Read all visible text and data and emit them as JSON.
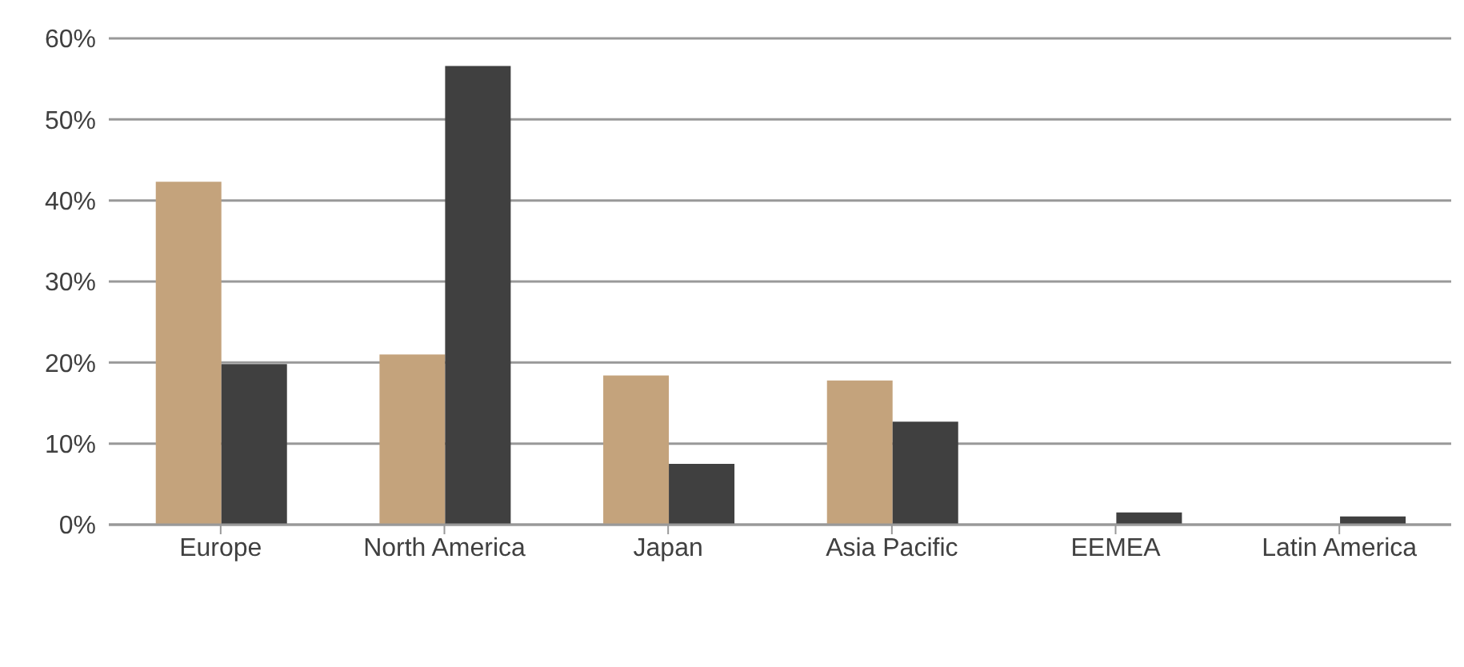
{
  "chart_data": {
    "type": "bar",
    "categories": [
      "Europe",
      "North America",
      "Japan",
      "Asia Pacific",
      "EEMEA",
      "Latin America"
    ],
    "series": [
      {
        "color": "#c4a37c",
        "values": [
          42.3,
          21.0,
          18.4,
          17.8,
          0,
          0
        ]
      },
      {
        "color": "#404040",
        "values": [
          19.8,
          56.6,
          7.5,
          12.7,
          1.5,
          1.0
        ]
      }
    ],
    "ylim": [
      0,
      60
    ],
    "yticks": [
      {
        "value": 0,
        "label": "0%"
      },
      {
        "value": 10,
        "label": "10%"
      },
      {
        "value": 20,
        "label": "20%"
      },
      {
        "value": 30,
        "label": "30%"
      },
      {
        "value": 40,
        "label": "40%"
      },
      {
        "value": 50,
        "label": "50%"
      },
      {
        "value": 60,
        "label": "60%"
      }
    ],
    "grid": "y"
  }
}
